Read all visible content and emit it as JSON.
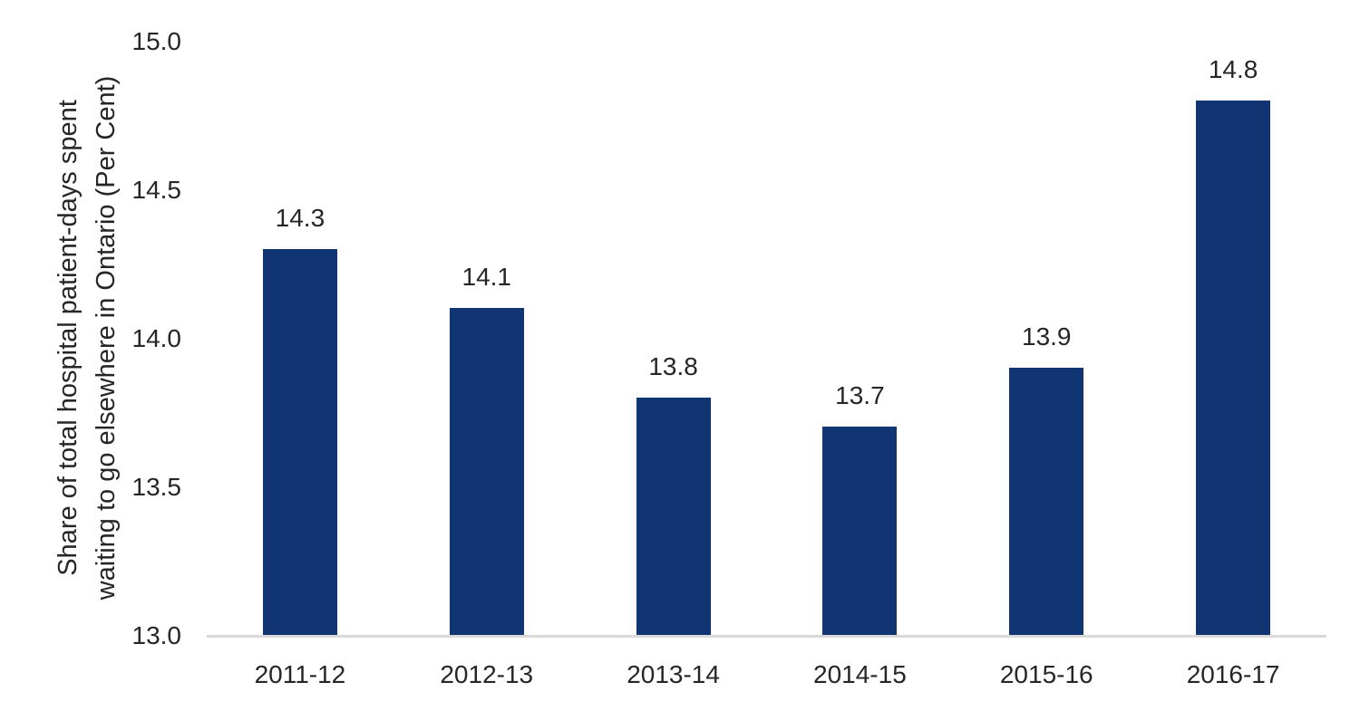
{
  "chart_data": {
    "type": "bar",
    "title": "",
    "xlabel": "",
    "ylabel": "Share of total hospital patient-days spent waiting to go elsewhere in Ontario (Per Cent)",
    "ylabel_lines": [
      "Share of total hospital patient-days spent",
      "waiting to go elsewhere in Ontario (Per Cent)"
    ],
    "categories": [
      "2011-12",
      "2012-13",
      "2013-14",
      "2014-15",
      "2015-16",
      "2016-17"
    ],
    "values": [
      14.3,
      14.1,
      13.8,
      13.7,
      13.9,
      14.8
    ],
    "value_labels": [
      "14.3",
      "14.1",
      "13.8",
      "13.7",
      "13.9",
      "14.8"
    ],
    "ylim": [
      13.0,
      15.0
    ],
    "yticks": [
      13.0,
      13.5,
      14.0,
      14.5,
      15.0
    ],
    "ytick_labels": [
      "13.0",
      "13.5",
      "14.0",
      "14.5",
      "15.0"
    ],
    "grid": false,
    "legend": false,
    "bar_color": "#103572",
    "axis_line_color": "#d9d9d9",
    "text_color": "#262626"
  }
}
